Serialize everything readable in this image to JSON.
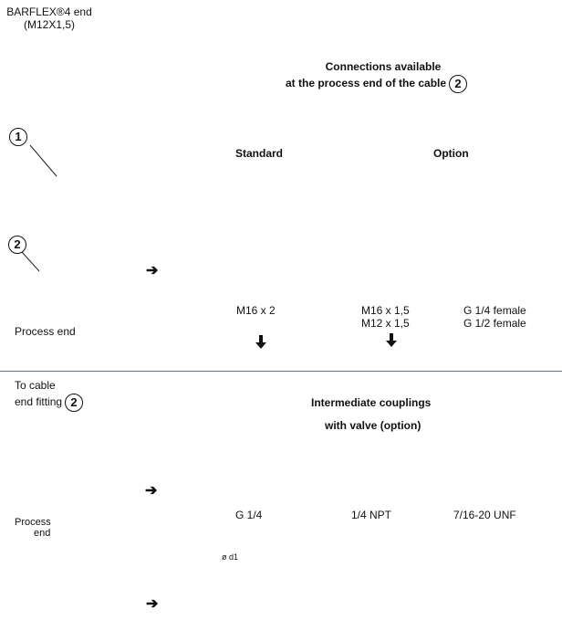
{
  "header": {
    "product_line1": "BARFLEX®4 end",
    "product_line2": "(M12X1,5)"
  },
  "connections": {
    "title_line1": "Connections available",
    "title_line2": "at the process end of the cable",
    "title_marker": "2"
  },
  "markers": {
    "m1": "1",
    "m2": "2"
  },
  "columns": {
    "standard": "Standard",
    "option": "Option"
  },
  "process_end_label": "Process end",
  "threads": {
    "standard": "M16 x 2",
    "option_a_line1": "M16 x 1,5",
    "option_a_line2": "M12 x 1,5",
    "option_b_line1": "G 1/4 female",
    "option_b_line2": "G 1/2 female"
  },
  "lower": {
    "to_cable_line1": "To cable",
    "to_cable_line2": "end fitting",
    "to_cable_marker": "2",
    "couplings_line1": "Intermediate couplings",
    "couplings_line2": "with valve (option)",
    "process_line1": "Process",
    "process_line2": "end",
    "fittings": [
      "G 1/4",
      "1/4 NPT",
      "7/16-20 UNF"
    ],
    "diameter": "ø d1"
  },
  "icons": {
    "arrow_right": "➔",
    "arrow_down": "🡇"
  }
}
